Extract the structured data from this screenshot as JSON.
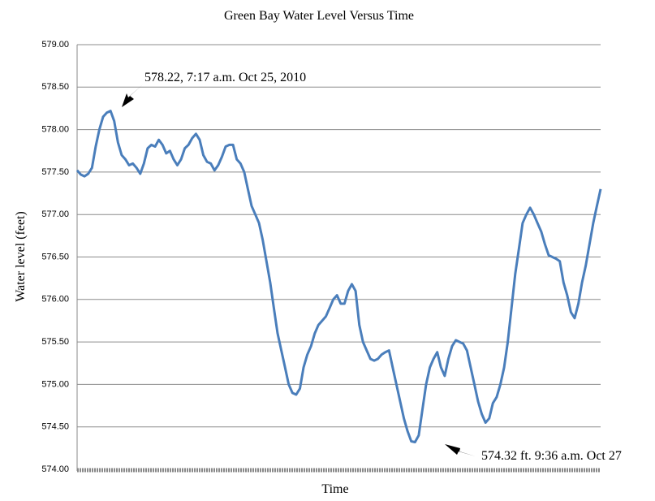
{
  "chart_data": {
    "type": "line",
    "title": "Green Bay Water Level Versus Time",
    "x_label": "Time",
    "y_label": "Water level (feet)",
    "annotations": [
      "578.22, 7:17 a.m. Oct 25, 2010",
      "574.32 ft. 9:36 a.m. Oct 27"
    ],
    "ylim": [
      574,
      579
    ],
    "yticks": [
      {
        "value": 574,
        "label": "574.00"
      },
      {
        "value": 574.5,
        "label": "574.50"
      },
      {
        "value": 575,
        "label": "575.00"
      },
      {
        "value": 575.5,
        "label": "575.50"
      },
      {
        "value": 576,
        "label": "576.00"
      },
      {
        "value": 576.5,
        "label": "576.50"
      },
      {
        "value": 577,
        "label": "577.00"
      },
      {
        "value": 577.5,
        "label": "577.50"
      },
      {
        "value": 578,
        "label": "578.00"
      },
      {
        "value": 578.5,
        "label": "578.50"
      },
      {
        "value": 579,
        "label": "579.00"
      }
    ],
    "grid": true,
    "color": "#4a7ebb",
    "values": [
      577.52,
      577.47,
      577.45,
      577.48,
      577.55,
      577.8,
      578.0,
      578.15,
      578.2,
      578.22,
      578.1,
      577.85,
      577.7,
      577.65,
      577.58,
      577.6,
      577.55,
      577.48,
      577.6,
      577.78,
      577.82,
      577.8,
      577.88,
      577.82,
      577.72,
      577.75,
      577.65,
      577.58,
      577.65,
      577.78,
      577.82,
      577.9,
      577.95,
      577.88,
      577.7,
      577.62,
      577.6,
      577.52,
      577.58,
      577.68,
      577.8,
      577.82,
      577.82,
      577.65,
      577.6,
      577.5,
      577.3,
      577.1,
      577.0,
      576.9,
      576.7,
      576.45,
      576.2,
      575.9,
      575.6,
      575.4,
      575.2,
      575.0,
      574.9,
      574.88,
      574.95,
      575.2,
      575.35,
      575.45,
      575.6,
      575.7,
      575.75,
      575.8,
      575.9,
      576.0,
      576.05,
      575.95,
      575.95,
      576.1,
      576.18,
      576.1,
      575.7,
      575.5,
      575.4,
      575.3,
      575.28,
      575.3,
      575.35,
      575.38,
      575.4,
      575.2,
      575.0,
      574.8,
      574.6,
      574.45,
      574.33,
      574.32,
      574.4,
      574.7,
      575.0,
      575.2,
      575.3,
      575.38,
      575.2,
      575.1,
      575.3,
      575.45,
      575.52,
      575.5,
      575.48,
      575.4,
      575.2,
      575.0,
      574.8,
      574.65,
      574.55,
      574.6,
      574.78,
      574.85,
      575.0,
      575.2,
      575.5,
      575.9,
      576.3,
      576.6,
      576.9,
      577.0,
      577.08,
      577.0,
      576.9,
      576.8,
      576.65,
      576.52,
      576.5,
      576.48,
      576.45,
      576.2,
      576.05,
      575.85,
      575.78,
      575.95,
      576.2,
      576.4,
      576.65,
      576.9,
      577.1,
      577.3
    ]
  }
}
